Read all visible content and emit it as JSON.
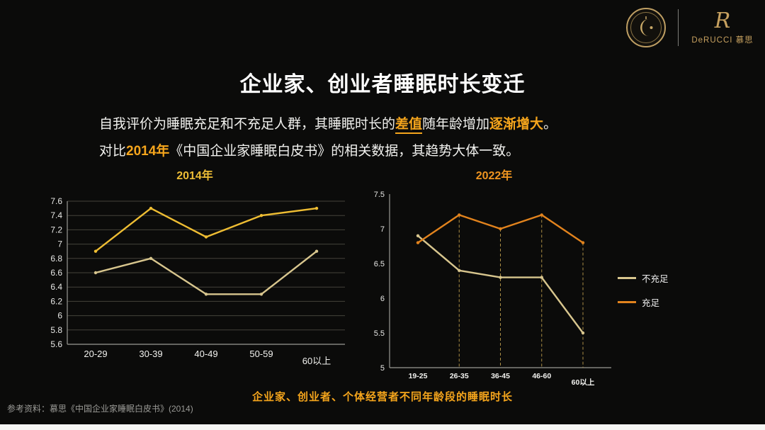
{
  "header": {
    "brand_mark": "R",
    "brand_name": "DeRUCCI 慕思"
  },
  "title": "企业家、创业者睡眠时长变迁",
  "intro": {
    "line1_pre": "自我评价为睡眠充足和不充足人群，其睡眠时长的",
    "line1_hl1": "差值",
    "line1_mid": "随年龄增加",
    "line1_hl2": "逐渐增大",
    "line1_post": "。",
    "line2_pre": "对比",
    "line2_hl": "2014年",
    "line2_post": "《中国企业家睡眠白皮书》的相关数据，其趋势大体一致。"
  },
  "caption": "企业家、创业者、个体经营者不同年龄段的睡眠时长",
  "footnote": "参考资料：慕思《中国企业家睡眠白皮书》(2014)",
  "colors": {
    "accent": "#f5a51c",
    "background": "#0b0b0a",
    "gold": "#c6a05f"
  },
  "chart_data": [
    {
      "type": "line",
      "title": "2014年",
      "title_color": "#ecbc35",
      "categories": [
        "20-29",
        "30-39",
        "40-49",
        "50-59",
        "60以上"
      ],
      "series": [
        {
          "name": "不充足",
          "color": "#d8c68e",
          "values": [
            6.6,
            6.8,
            6.3,
            6.3,
            6.9
          ]
        },
        {
          "name": "充足",
          "color": "#eebd33",
          "values": [
            6.9,
            7.5,
            7.1,
            7.4,
            7.5
          ]
        }
      ],
      "ylim": [
        5.6,
        7.6
      ],
      "ystep": 0.2,
      "grid": true,
      "legend": false
    },
    {
      "type": "line",
      "title": "2022年",
      "title_color": "#ee9420",
      "categories": [
        "19-25",
        "26-35",
        "36-45",
        "46-60",
        "60以上"
      ],
      "series": [
        {
          "name": "不充足",
          "color": "#d8c68e",
          "values": [
            6.9,
            6.4,
            6.3,
            6.3,
            5.5
          ]
        },
        {
          "name": "充足",
          "color": "#e2831d",
          "values": [
            6.8,
            7.2,
            7.0,
            7.2,
            6.8
          ]
        }
      ],
      "ylim": [
        5,
        7.5
      ],
      "ystep": 0.5,
      "grid": false,
      "legend": true,
      "legend_position": "right",
      "drop_from": "充足"
    }
  ]
}
